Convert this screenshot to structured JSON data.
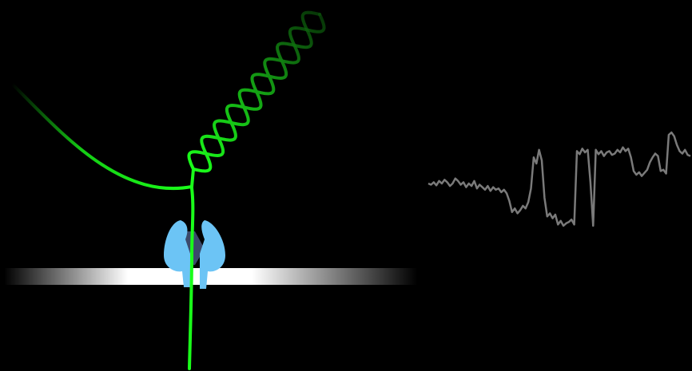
{
  "scene": {
    "background": "#000000",
    "strand_color": "#1aff1a",
    "strand_color_dark": "#0a4d0a",
    "pore_color": "#6cc4f5",
    "pore_inner_color": "#3b4a6b",
    "membrane_color": "#ffffff",
    "trace_color": "#7a7a7a"
  },
  "icons": {
    "nanopore": "nanopore-protein-icon",
    "membrane": "lipid-membrane",
    "dna": "dna-double-helix"
  },
  "signal_trace": {
    "type": "line",
    "values": [
      0.18,
      0.16,
      0.2,
      0.15,
      0.22,
      0.18,
      0.24,
      0.2,
      0.14,
      0.18,
      0.26,
      0.22,
      0.16,
      0.2,
      0.12,
      0.18,
      0.14,
      0.22,
      0.1,
      0.16,
      0.12,
      0.08,
      0.14,
      0.06,
      0.12,
      0.08,
      0.1,
      0.04,
      0.08,
      0.02,
      -0.1,
      -0.28,
      -0.22,
      -0.3,
      -0.25,
      -0.18,
      -0.22,
      -0.12,
      0.1,
      0.6,
      0.5,
      0.72,
      0.55,
      -0.05,
      -0.35,
      -0.3,
      -0.38,
      -0.32,
      -0.48,
      -0.42,
      -0.5,
      -0.46,
      -0.44,
      -0.4,
      -0.48,
      0.7,
      0.65,
      0.74,
      0.68,
      0.72,
      0.2,
      -0.5,
      0.72,
      0.65,
      0.7,
      0.62,
      0.68,
      0.7,
      0.64,
      0.66,
      0.72,
      0.68,
      0.76,
      0.7,
      0.74,
      0.6,
      0.38,
      0.32,
      0.36,
      0.3,
      0.35,
      0.4,
      0.52,
      0.6,
      0.66,
      0.62,
      0.38,
      0.4,
      0.34,
      0.96,
      1.0,
      0.94,
      0.8,
      0.7,
      0.66,
      0.72,
      0.64,
      0.62
    ]
  }
}
